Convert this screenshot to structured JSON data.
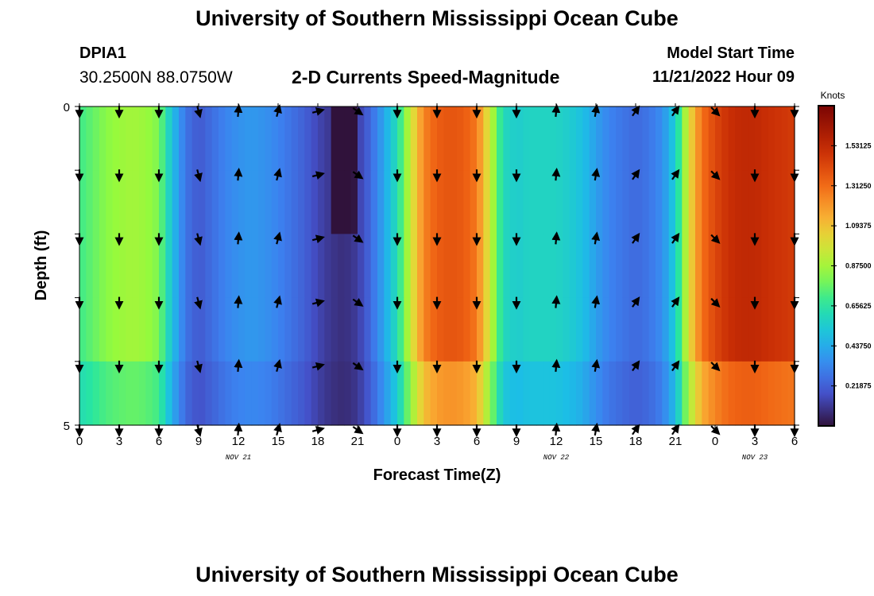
{
  "header": {
    "title": "University of Southern Mississippi Ocean Cube",
    "station": "DPIA1",
    "coords": "30.2500N  88.0750W",
    "subtitle": "2-D Currents Speed-Magnitude",
    "model_start_label": "Model Start Time",
    "model_start_value": "11/21/2022 Hour 09"
  },
  "footer": {
    "title": "University of Southern Mississippi Ocean Cube"
  },
  "chart_data": {
    "type": "heatmap",
    "title": "2-D Currents Speed-Magnitude",
    "xlabel": "Forecast Time(Z)",
    "ylabel": "Depth (ft)",
    "xlim": [
      0,
      54
    ],
    "ylim": [
      5,
      0
    ],
    "x_tick_labels": [
      "0",
      "3",
      "6",
      "9",
      "12",
      "15",
      "18",
      "21",
      "0",
      "3",
      "6",
      "9",
      "12",
      "15",
      "18",
      "21",
      "0",
      "3",
      "6"
    ],
    "y_tick_labels": [
      "0",
      "5"
    ],
    "day_labels": [
      {
        "text": "NOV 21",
        "hour": 12
      },
      {
        "text": "NOV 22",
        "hour": 36
      },
      {
        "text": "NOV 23",
        "hour": 51
      }
    ],
    "colorbar": {
      "unit": "Knots",
      "range": [
        0.0,
        1.75
      ],
      "tick_labels": [
        "0.21875",
        "0.43750",
        "0.65625",
        "0.87500",
        "1.09375",
        "1.31250",
        "1.53125"
      ],
      "tick_values": [
        0.21875,
        0.4375,
        0.65625,
        0.875,
        1.09375,
        1.3125,
        1.53125
      ]
    },
    "depth_levels": [
      0,
      1,
      2,
      3,
      4,
      5
    ],
    "speed_profile": {
      "hours": [
        0,
        1,
        2,
        3,
        4,
        5,
        6,
        7,
        8,
        9,
        10,
        11,
        12,
        13,
        14,
        15,
        16,
        17,
        18,
        19,
        20,
        21,
        22,
        23,
        24,
        25,
        26,
        27,
        28,
        29,
        30,
        31,
        32,
        33,
        34,
        35,
        36,
        37,
        38,
        39,
        40,
        41,
        42,
        43,
        44,
        45,
        46,
        47,
        48,
        49,
        50,
        51,
        52,
        53,
        54
      ],
      "knots": [
        0.7,
        0.76,
        0.82,
        0.85,
        0.87,
        0.85,
        0.8,
        0.5,
        0.28,
        0.2,
        0.26,
        0.32,
        0.36,
        0.38,
        0.36,
        0.32,
        0.27,
        0.22,
        0.15,
        0.1,
        0.08,
        0.12,
        0.25,
        0.42,
        0.62,
        0.95,
        1.25,
        1.35,
        1.38,
        1.36,
        1.28,
        0.95,
        0.6,
        0.55,
        0.58,
        0.58,
        0.58,
        0.55,
        0.5,
        0.4,
        0.32,
        0.28,
        0.25,
        0.28,
        0.35,
        0.55,
        1.0,
        1.3,
        1.42,
        1.5,
        1.53,
        1.53,
        1.5,
        1.48,
        1.46
      ]
    },
    "vector_hours": [
      0,
      3,
      6,
      9,
      12,
      15,
      18,
      21,
      24,
      27,
      30,
      33,
      36,
      39,
      42,
      45,
      48,
      51,
      54
    ],
    "vector_directions_deg": [
      180,
      180,
      180,
      165,
      5,
      15,
      75,
      125,
      180,
      180,
      180,
      180,
      5,
      10,
      35,
      35,
      135,
      180,
      180
    ],
    "vector_note": "arrows point in current direction (degrees clockwise from north) at each depth level"
  }
}
